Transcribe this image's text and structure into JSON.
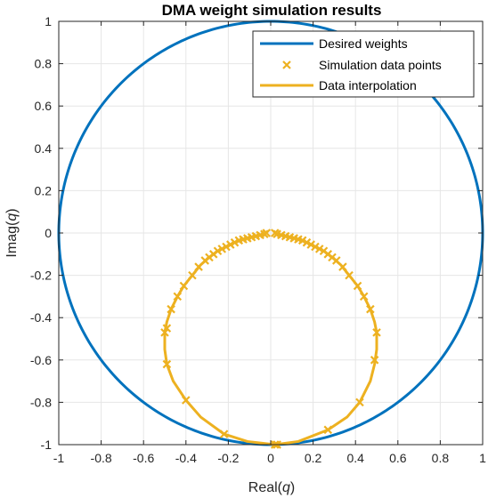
{
  "chart_data": {
    "type": "line",
    "title": "DMA weight simulation results",
    "xlabel_main": "Real(",
    "xlabel_var": "q",
    "xlabel_end": ")",
    "ylabel_main": "Imag(",
    "ylabel_var": "q",
    "ylabel_end": ")",
    "xlim": [
      -1,
      1
    ],
    "ylim": [
      -1,
      1
    ],
    "xticks": [
      -1,
      -0.8,
      -0.6,
      -0.4,
      -0.2,
      0,
      0.2,
      0.4,
      0.6,
      0.8,
      1
    ],
    "yticks": [
      -1,
      -0.8,
      -0.6,
      -0.4,
      -0.2,
      0,
      0.2,
      0.4,
      0.6,
      0.8,
      1
    ],
    "xtick_labels": [
      "-1",
      "-0.8",
      "-0.6",
      "-0.4",
      "-0.2",
      "0",
      "0.2",
      "0.4",
      "0.6",
      "0.8",
      "1"
    ],
    "ytick_labels": [
      "-1",
      "-0.8",
      "-0.6",
      "-0.4",
      "-0.2",
      "0",
      "0.2",
      "0.4",
      "0.6",
      "0.8",
      "1"
    ],
    "grid": true,
    "legend_position": "top-right",
    "colors": {
      "desired": "#0072BD",
      "simulation": "#EDB120",
      "interpolation": "#EDB120"
    },
    "series": [
      {
        "name": "Desired weights",
        "kind": "line",
        "description_formula": "x = cos(t), y = sin(t), t in [0, 2π]"
      },
      {
        "name": "Simulation data points",
        "kind": "markers",
        "x": [
          -0.02,
          -0.03,
          -0.05,
          -0.07,
          -0.09,
          -0.11,
          -0.13,
          -0.15,
          -0.17,
          -0.19,
          -0.21,
          -0.23,
          -0.25,
          -0.27,
          -0.29,
          -0.31,
          -0.34,
          -0.37,
          -0.41,
          -0.44,
          -0.47,
          -0.49,
          -0.5,
          -0.49,
          -0.4,
          -0.22,
          0.02,
          0.03,
          0.27,
          0.42,
          0.49,
          0.5,
          0.47,
          0.44,
          0.41,
          0.37,
          0.34,
          0.31,
          0.29,
          0.27,
          0.25,
          0.23,
          0.21,
          0.19,
          0.17,
          0.15,
          0.13,
          0.11,
          0.09,
          0.07,
          0.05,
          0.03,
          0.02
        ],
        "y": [
          -0.0,
          -0.005,
          -0.01,
          -0.015,
          -0.02,
          -0.025,
          -0.03,
          -0.035,
          -0.045,
          -0.055,
          -0.065,
          -0.075,
          -0.085,
          -0.1,
          -0.115,
          -0.13,
          -0.16,
          -0.2,
          -0.25,
          -0.3,
          -0.36,
          -0.45,
          -0.47,
          -0.62,
          -0.79,
          -0.95,
          -1.0,
          -1.0,
          -0.93,
          -0.8,
          -0.6,
          -0.47,
          -0.36,
          -0.3,
          -0.25,
          -0.2,
          -0.16,
          -0.13,
          -0.115,
          -0.1,
          -0.085,
          -0.075,
          -0.065,
          -0.055,
          -0.045,
          -0.035,
          -0.03,
          -0.025,
          -0.02,
          -0.015,
          -0.01,
          -0.005,
          -0.0
        ]
      },
      {
        "name": "Data interpolation",
        "kind": "line",
        "x": [
          -0.02,
          -0.05,
          -0.09,
          -0.13,
          -0.17,
          -0.21,
          -0.25,
          -0.29,
          -0.33,
          -0.37,
          -0.41,
          -0.44,
          -0.47,
          -0.49,
          -0.5,
          -0.5,
          -0.49,
          -0.46,
          -0.4,
          -0.33,
          -0.22,
          -0.11,
          0.02,
          0.13,
          0.27,
          0.36,
          0.42,
          0.47,
          0.49,
          0.5,
          0.5,
          0.49,
          0.47,
          0.44,
          0.41,
          0.37,
          0.33,
          0.29,
          0.25,
          0.21,
          0.17,
          0.13,
          0.09,
          0.05,
          0.02
        ],
        "y": [
          -0.0,
          -0.01,
          -0.02,
          -0.03,
          -0.045,
          -0.065,
          -0.085,
          -0.115,
          -0.15,
          -0.2,
          -0.25,
          -0.3,
          -0.36,
          -0.42,
          -0.47,
          -0.55,
          -0.62,
          -0.7,
          -0.79,
          -0.87,
          -0.95,
          -0.985,
          -1.0,
          -0.985,
          -0.93,
          -0.87,
          -0.8,
          -0.7,
          -0.62,
          -0.55,
          -0.47,
          -0.42,
          -0.36,
          -0.3,
          -0.25,
          -0.2,
          -0.15,
          -0.115,
          -0.085,
          -0.065,
          -0.045,
          -0.03,
          -0.02,
          -0.01,
          -0.0
        ]
      }
    ]
  }
}
